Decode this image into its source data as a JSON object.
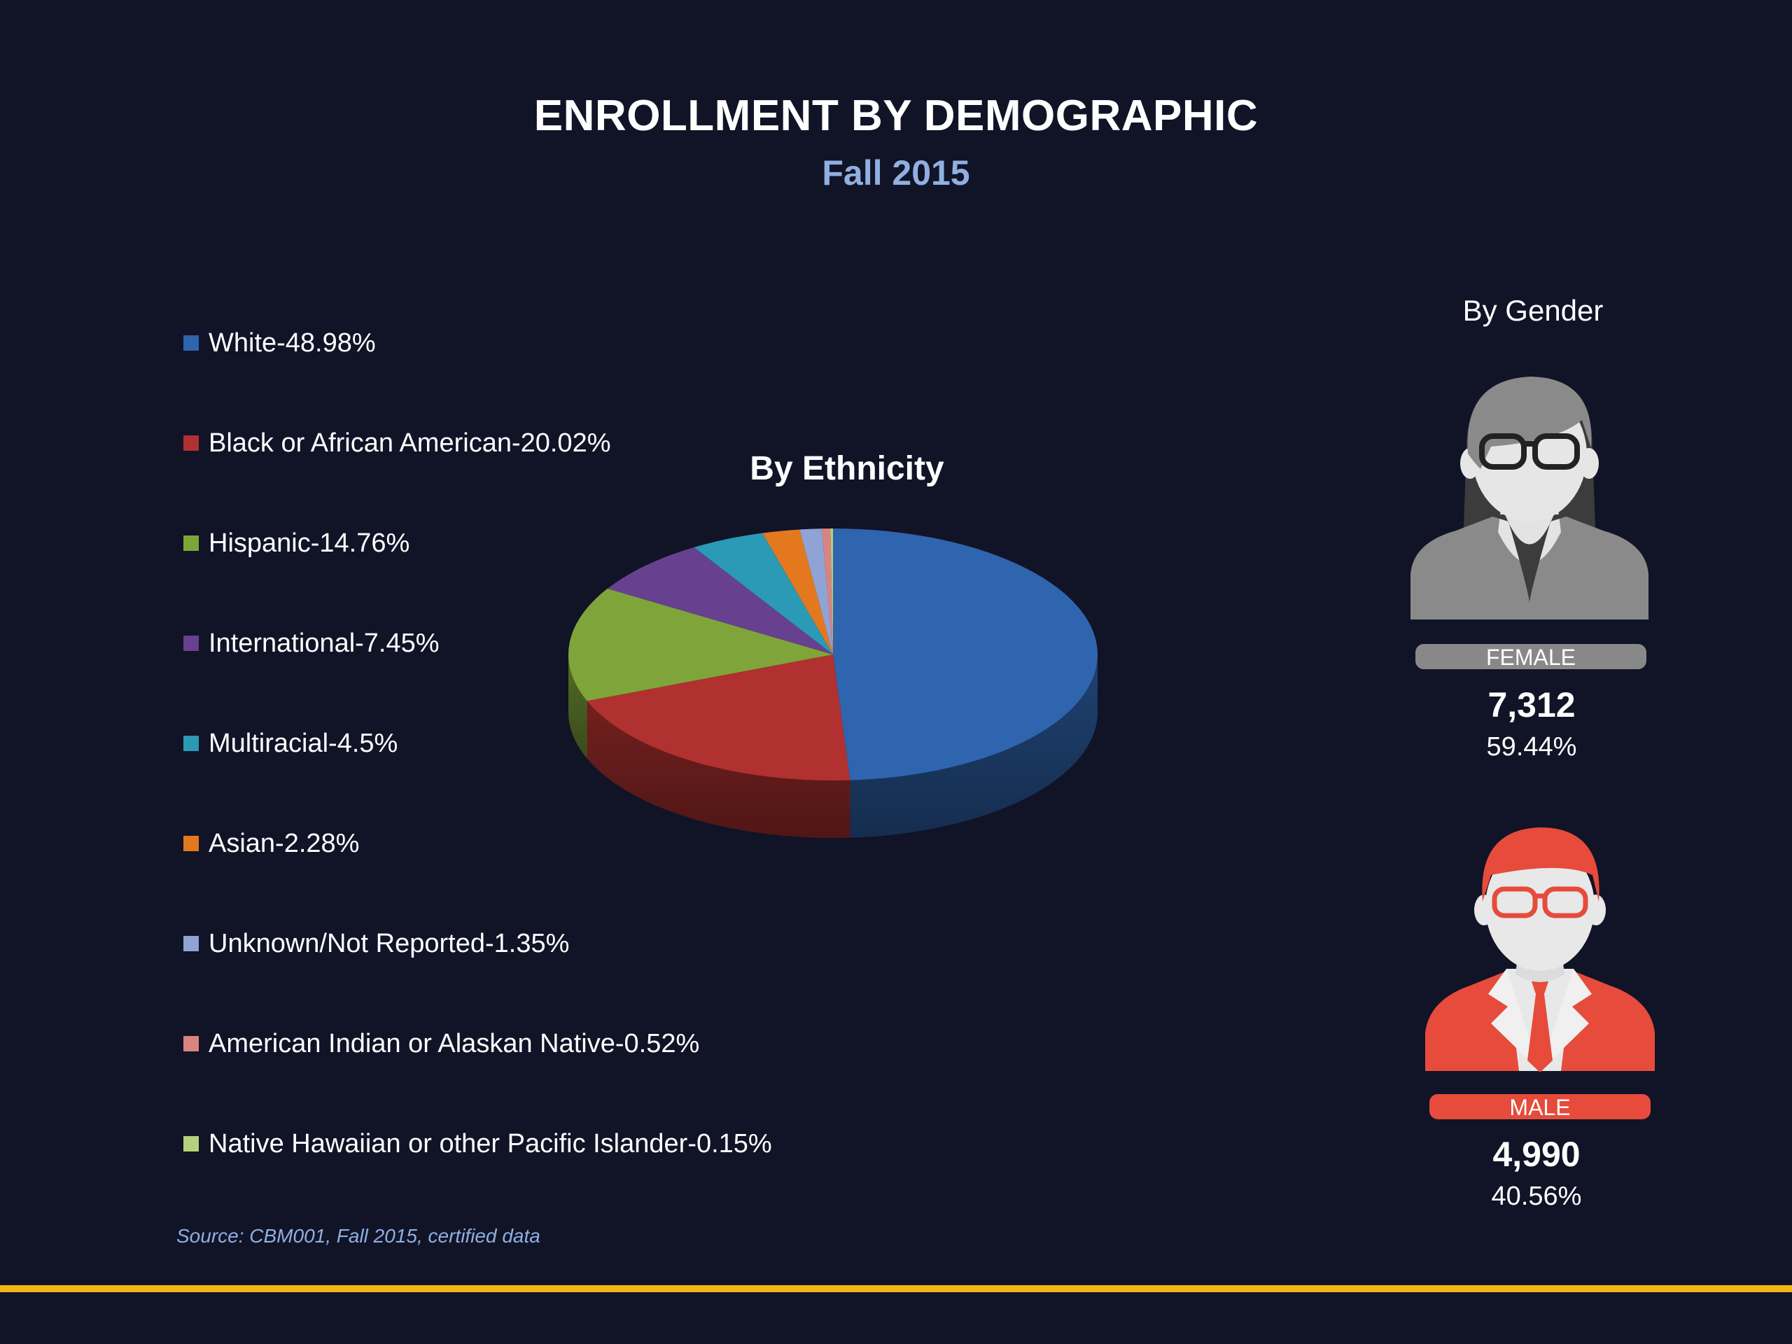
{
  "header": {
    "title": "ENROLLMENT BY DEMOGRAPHIC",
    "subtitle": "Fall 2015"
  },
  "chart_data": {
    "type": "pie",
    "title": "By Ethnicity",
    "legend_position": "left",
    "slices": [
      {
        "label": "White-48.98%",
        "name": "White",
        "value": 48.98,
        "color": "#2f64ae"
      },
      {
        "label": "Black or African American-20.02%",
        "name": "Black or African American",
        "value": 20.02,
        "color": "#b0312f"
      },
      {
        "label": "Hispanic-14.76%",
        "name": "Hispanic",
        "value": 14.76,
        "color": "#7fa53a"
      },
      {
        "label": "International-7.45%",
        "name": "International",
        "value": 7.45,
        "color": "#674090"
      },
      {
        "label": "Multiracial-4.5%",
        "name": "Multiracial",
        "value": 4.5,
        "color": "#2a9ab5"
      },
      {
        "label": "Asian-2.28%",
        "name": "Asian",
        "value": 2.28,
        "color": "#e4781f"
      },
      {
        "label": "Unknown/Not Reported-1.35%",
        "name": "Unknown/Not Reported",
        "value": 1.35,
        "color": "#8fa3d4"
      },
      {
        "label": "American Indian or Alaskan Native-0.52%",
        "name": "American Indian or Alaskan Native",
        "value": 0.52,
        "color": "#d98480"
      },
      {
        "label": "Native Hawaiian or other Pacific Islander-0.15%",
        "name": "Native Hawaiian or other Pacific Islander",
        "value": 0.15,
        "color": "#b4d27d"
      }
    ]
  },
  "gender": {
    "title": "By Gender",
    "female": {
      "label": "FEMALE",
      "count": "7,312",
      "percent": "59.44%",
      "value": 59.44,
      "color": "#888888"
    },
    "male": {
      "label": "MALE",
      "count": "4,990",
      "percent": "40.56%",
      "value": 40.56,
      "color": "#e64b3b"
    }
  },
  "footer": {
    "source": "Source: CBM001, Fall 2015, certified data",
    "accent_color": "#f2b716"
  }
}
